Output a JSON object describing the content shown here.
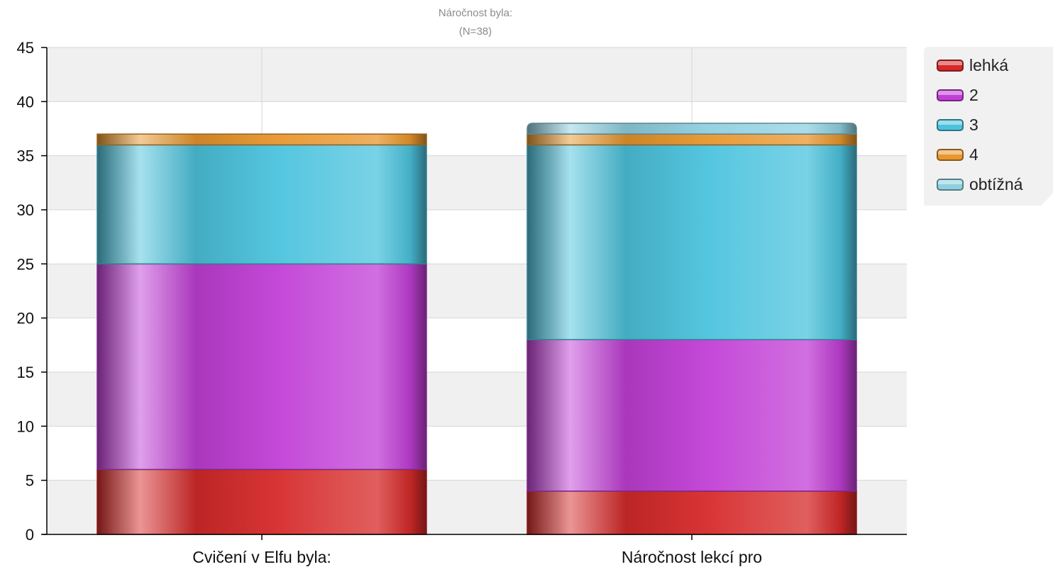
{
  "chart_data": {
    "type": "bar",
    "stacked": true,
    "title": "Náročnost byla:",
    "subtitle": "(N=38)",
    "categories": [
      "Cvičení v Elfu byla:",
      "Náročnost lekcí pro"
    ],
    "series": [
      {
        "name": "lehká",
        "values": [
          6,
          4
        ],
        "color": "#d62a2a"
      },
      {
        "name": "2",
        "values": [
          19,
          14
        ],
        "color": "#c13fd6"
      },
      {
        "name": "3",
        "values": [
          11,
          18
        ],
        "color": "#4cc3dd"
      },
      {
        "name": "4",
        "values": [
          1,
          1
        ],
        "color": "#e8962e"
      },
      {
        "name": "obtížná",
        "values": [
          0,
          1
        ],
        "color": "#8fd0e0"
      }
    ],
    "ylim": [
      0,
      45
    ],
    "yticks": [
      0,
      5,
      10,
      15,
      20,
      25,
      30,
      35,
      40,
      45
    ],
    "grid": true,
    "legend_position": "right"
  }
}
